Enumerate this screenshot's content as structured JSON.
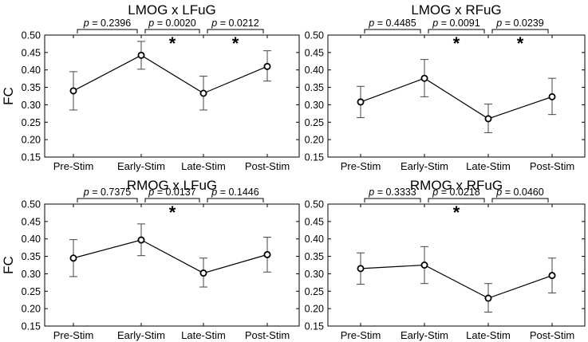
{
  "chart_data": [
    {
      "type": "line",
      "title": "LMOG x LFuG",
      "ylabel": "FC",
      "categories": [
        "Pre-Stim",
        "Early-Stim",
        "Late-Stim",
        "Post-Stim"
      ],
      "values": [
        0.34,
        0.442,
        0.333,
        0.41
      ],
      "error_low": [
        0.285,
        0.402,
        0.285,
        0.368
      ],
      "error_high": [
        0.395,
        0.482,
        0.382,
        0.455
      ],
      "ylim": [
        0.15,
        0.5
      ],
      "yticks": [
        "0.15",
        "0.20",
        "0.25",
        "0.30",
        "0.35",
        "0.40",
        "0.45",
        "0.50"
      ],
      "comparisons": [
        {
          "label": "p = 0.2396",
          "significant": false
        },
        {
          "label": "p = 0.0020",
          "significant": true
        },
        {
          "label": "p = 0.0212",
          "significant": true
        }
      ]
    },
    {
      "type": "line",
      "title": "LMOG x RFuG",
      "ylabel": "",
      "categories": [
        "Pre-Stim",
        "Early-Stim",
        "Late-Stim",
        "Post-Stim"
      ],
      "values": [
        0.308,
        0.376,
        0.26,
        0.323
      ],
      "error_low": [
        0.263,
        0.323,
        0.22,
        0.272
      ],
      "error_high": [
        0.353,
        0.43,
        0.302,
        0.376
      ],
      "ylim": [
        0.15,
        0.5
      ],
      "yticks": [
        "0.15",
        "0.20",
        "0.25",
        "0.30",
        "0.35",
        "0.40",
        "0.45",
        "0.50"
      ],
      "comparisons": [
        {
          "label": "p = 0.4485",
          "significant": false
        },
        {
          "label": "p = 0.0091",
          "significant": true
        },
        {
          "label": "p = 0.0239",
          "significant": true
        }
      ]
    },
    {
      "type": "line",
      "title": "RMOG x LFuG",
      "ylabel": "FC",
      "categories": [
        "Pre-Stim",
        "Early-Stim",
        "Late-Stim",
        "Post-Stim"
      ],
      "values": [
        0.345,
        0.397,
        0.302,
        0.355
      ],
      "error_low": [
        0.292,
        0.352,
        0.262,
        0.305
      ],
      "error_high": [
        0.398,
        0.443,
        0.345,
        0.405
      ],
      "ylim": [
        0.15,
        0.5
      ],
      "yticks": [
        "0.15",
        "0.20",
        "0.25",
        "0.30",
        "0.35",
        "0.40",
        "0.45",
        "0.50"
      ],
      "comparisons": [
        {
          "label": "p = 0.7375",
          "significant": false
        },
        {
          "label": "p = 0.0137",
          "significant": true
        },
        {
          "label": "p = 0.1446",
          "significant": false
        }
      ]
    },
    {
      "type": "line",
      "title": "RMOG x RFuG",
      "ylabel": "",
      "categories": [
        "Pre-Stim",
        "Early-Stim",
        "Late-Stim",
        "Post-Stim"
      ],
      "values": [
        0.315,
        0.325,
        0.23,
        0.295
      ],
      "error_low": [
        0.27,
        0.272,
        0.19,
        0.245
      ],
      "error_high": [
        0.36,
        0.378,
        0.272,
        0.345
      ],
      "ylim": [
        0.15,
        0.5
      ],
      "yticks": [
        "0.15",
        "0.20",
        "0.25",
        "0.30",
        "0.35",
        "0.40",
        "0.45",
        "0.50"
      ],
      "comparisons": [
        {
          "label": "p = 0.3333",
          "significant": false
        },
        {
          "label": "p = 0.0218",
          "significant": true
        },
        {
          "label": "p = 0.0460",
          "significant": false
        }
      ]
    }
  ],
  "significance_marker": "*"
}
